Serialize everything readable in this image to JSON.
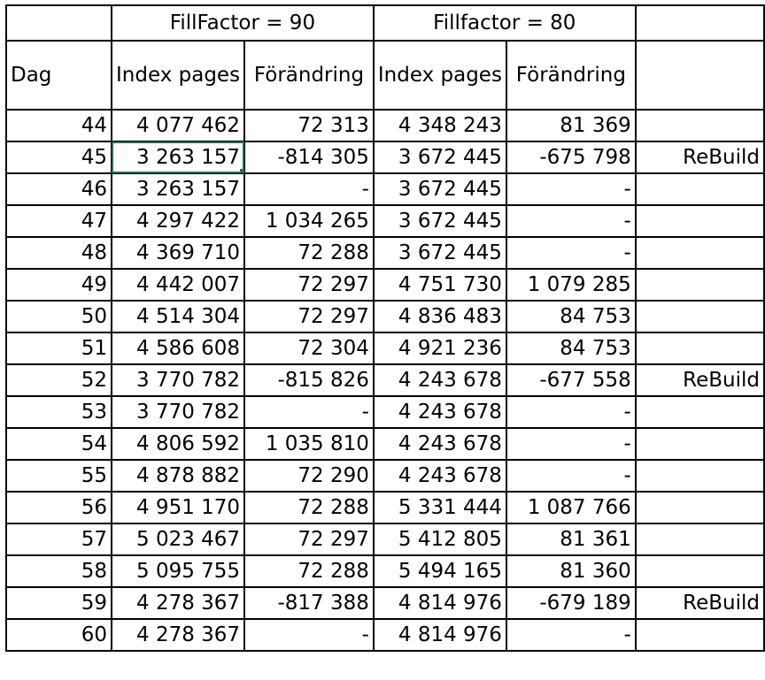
{
  "header": {
    "group1": "FillFactor = 90",
    "group2": "Fillfactor = 80",
    "col_dag": "Dag",
    "col_index_pages_1": "Index pages",
    "col_change_1": "Förändring",
    "col_index_pages_2": "Index pages",
    "col_change_2": "Förändring",
    "col_note": ""
  },
  "rows": [
    {
      "dag": "44",
      "ip90": "4 077 462",
      "ch90": "72 313",
      "ip80": "4 348 243",
      "ch80": "81 369",
      "note": ""
    },
    {
      "dag": "45",
      "ip90": "3 263 157",
      "ch90": "-814 305",
      "ip80": "3 672 445",
      "ch80": "-675 798",
      "note": "ReBuild"
    },
    {
      "dag": "46",
      "ip90": "3 263 157",
      "ch90": "-",
      "ip80": "3 672 445",
      "ch80": "-",
      "note": ""
    },
    {
      "dag": "47",
      "ip90": "4 297 422",
      "ch90": "1 034 265",
      "ip80": "3 672 445",
      "ch80": "-",
      "note": ""
    },
    {
      "dag": "48",
      "ip90": "4 369 710",
      "ch90": "72 288",
      "ip80": "3 672 445",
      "ch80": "-",
      "note": ""
    },
    {
      "dag": "49",
      "ip90": "4 442 007",
      "ch90": "72 297",
      "ip80": "4 751 730",
      "ch80": "1 079 285",
      "note": ""
    },
    {
      "dag": "50",
      "ip90": "4 514 304",
      "ch90": "72 297",
      "ip80": "4 836 483",
      "ch80": "84 753",
      "note": ""
    },
    {
      "dag": "51",
      "ip90": "4 586 608",
      "ch90": "72 304",
      "ip80": "4 921 236",
      "ch80": "84 753",
      "note": ""
    },
    {
      "dag": "52",
      "ip90": "3 770 782",
      "ch90": "-815 826",
      "ip80": "4 243 678",
      "ch80": "-677 558",
      "note": "ReBuild"
    },
    {
      "dag": "53",
      "ip90": "3 770 782",
      "ch90": "-",
      "ip80": "4 243 678",
      "ch80": "-",
      "note": ""
    },
    {
      "dag": "54",
      "ip90": "4 806 592",
      "ch90": "1 035 810",
      "ip80": "4 243 678",
      "ch80": "-",
      "note": ""
    },
    {
      "dag": "55",
      "ip90": "4 878 882",
      "ch90": "72 290",
      "ip80": "4 243 678",
      "ch80": "-",
      "note": ""
    },
    {
      "dag": "56",
      "ip90": "4 951 170",
      "ch90": "72 288",
      "ip80": "5 331 444",
      "ch80": "1 087 766",
      "note": ""
    },
    {
      "dag": "57",
      "ip90": "5 023 467",
      "ch90": "72 297",
      "ip80": "5 412 805",
      "ch80": "81 361",
      "note": ""
    },
    {
      "dag": "58",
      "ip90": "5 095 755",
      "ch90": "72 288",
      "ip80": "5 494 165",
      "ch80": "81 360",
      "note": ""
    },
    {
      "dag": "59",
      "ip90": "4 278 367",
      "ch90": "-817 388",
      "ip80": "4 814 976",
      "ch80": "-679 189",
      "note": "ReBuild"
    },
    {
      "dag": "60",
      "ip90": "4 278 367",
      "ch90": "-",
      "ip80": "4 814 976",
      "ch80": "-",
      "note": ""
    }
  ]
}
